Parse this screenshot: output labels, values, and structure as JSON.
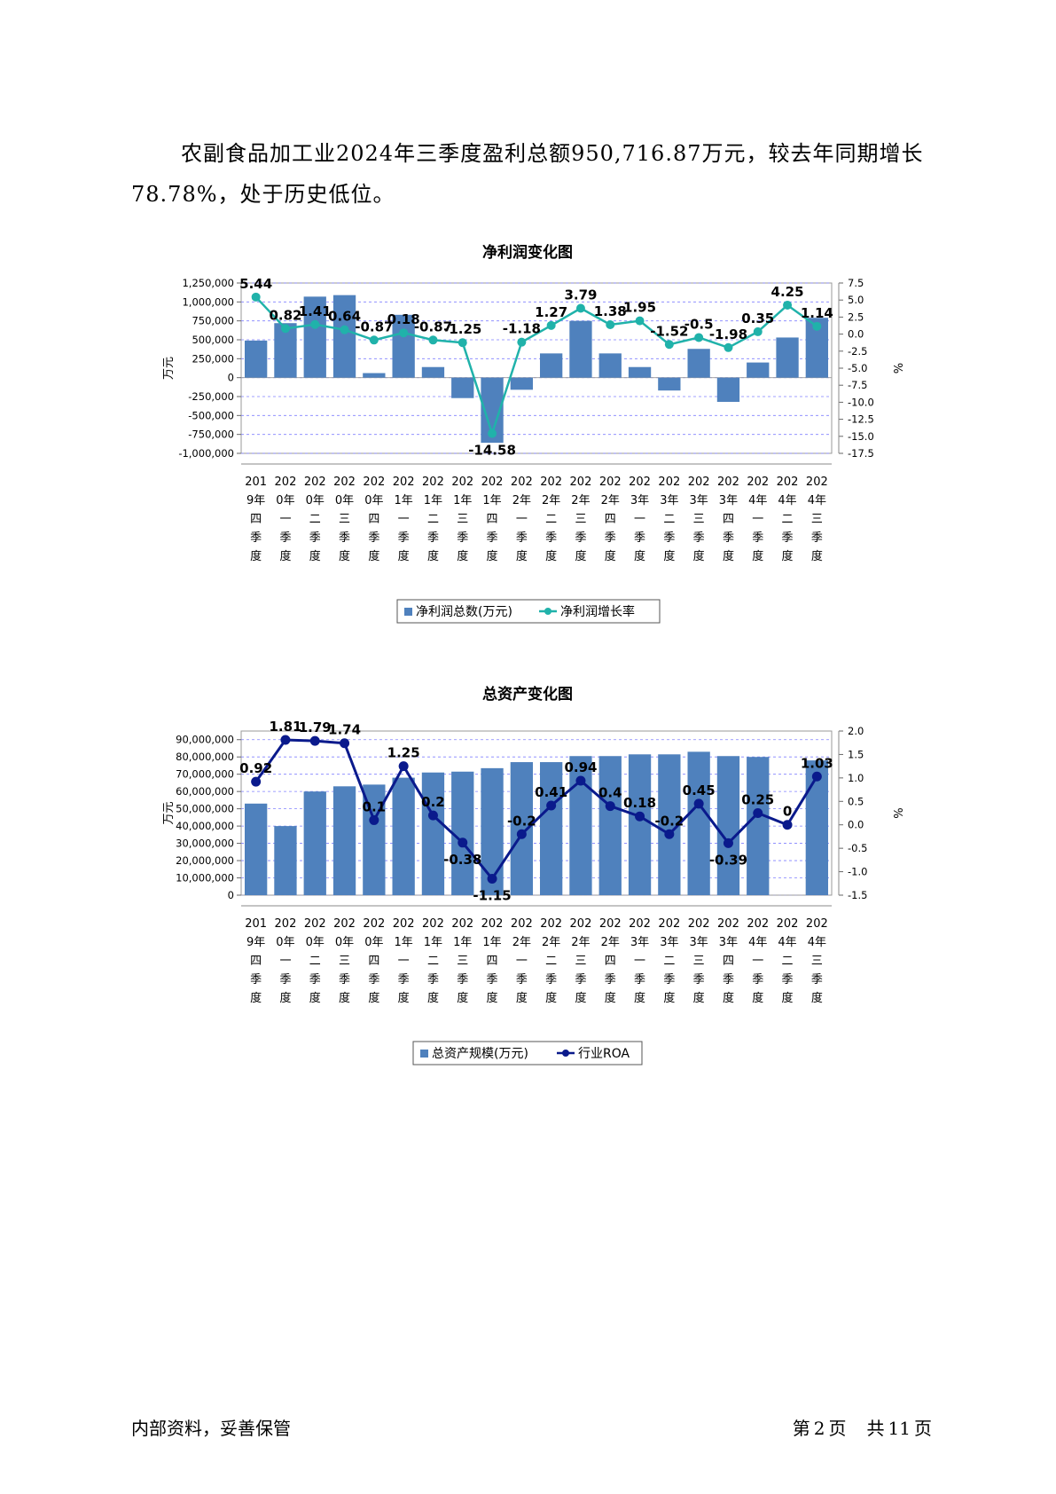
{
  "paragraph": "农副食品加工业2024年三季度盈利总额950,716.87万元，较去年同期增长78.78%，处于历史低位。",
  "footer": {
    "left": "内部资料，妥善保管",
    "page_prefix": "第",
    "page_num": "2",
    "page_unit": "页",
    "total_prefix": "共",
    "total_num": "11",
    "total_unit": "页"
  },
  "colors": {
    "bar": "#4f81bd",
    "line1": "#20b2aa",
    "line2": "#0a1a8c",
    "grid": "#8080ff"
  },
  "chart_data": [
    {
      "type": "bar",
      "title": "净利润变化图",
      "ylabel": "万元",
      "y2label": "%",
      "ylim": [
        -1000000,
        1250000
      ],
      "yticks": [
        "1,250,000",
        "1,000,000",
        "750,000",
        "500,000",
        "250,000",
        "0",
        "-250,000",
        "-500,000",
        "-750,000",
        "-1,000,000"
      ],
      "y2lim": [
        -17.5,
        7.5
      ],
      "y2ticks": [
        "7.5",
        "5.0",
        "2.5",
        "0.0",
        "-2.5",
        "-5.0",
        "-7.5",
        "-10.0",
        "-12.5",
        "-15.0",
        "-17.5"
      ],
      "categories": [
        "2019年四季度",
        "2020年一季度",
        "2020年二季度",
        "2020年三季度",
        "2020年四季度",
        "2021年一季度",
        "2021年二季度",
        "2021年三季度",
        "2021年四季度",
        "2022年一季度",
        "2022年二季度",
        "2022年三季度",
        "2022年四季度",
        "2023年一季度",
        "2023年二季度",
        "2023年三季度",
        "2023年四季度",
        "2024年一季度",
        "2024年二季度",
        "2024年三季度"
      ],
      "series": [
        {
          "name": "净利润总数(万元)",
          "kind": "bar",
          "values": [
            490000,
            720000,
            1070000,
            1090000,
            60000,
            830000,
            140000,
            -270000,
            -860000,
            -160000,
            320000,
            750000,
            320000,
            140000,
            -170000,
            380000,
            -320000,
            200000,
            530000,
            790000
          ]
        },
        {
          "name": "净利润增长率",
          "kind": "line",
          "values": [
            5.44,
            0.82,
            1.41,
            0.64,
            -0.87,
            0.18,
            -0.87,
            -1.25,
            -14.58,
            -1.18,
            1.27,
            3.79,
            1.38,
            1.95,
            -1.52,
            -0.5,
            -1.98,
            0.35,
            4.25,
            1.14
          ],
          "labels": [
            "5.44",
            "0.82",
            "1.41",
            "0.64",
            "-0.87",
            "0.18",
            "-0.87",
            "-1.25",
            "-14.58",
            "-1.18",
            "1.27",
            "3.79",
            "1.38",
            "1.95",
            "-1.52",
            "-0.5",
            "-1.98",
            "0.35",
            "4.25",
            "1.14"
          ]
        }
      ],
      "legend": "bottom",
      "grid": true
    },
    {
      "type": "bar",
      "title": "总资产变化图",
      "ylabel": "万元",
      "y2label": "%",
      "ylim": [
        0,
        95000000
      ],
      "yticks": [
        "90,000,000",
        "80,000,000",
        "70,000,000",
        "60,000,000",
        "50,000,000",
        "40,000,000",
        "30,000,000",
        "20,000,000",
        "10,000,000",
        "0"
      ],
      "y2lim": [
        -1.5,
        2.0
      ],
      "y2ticks": [
        "2.0",
        "1.5",
        "1.0",
        "0.5",
        "0.0",
        "-0.5",
        "-1.0",
        "-1.5"
      ],
      "categories": [
        "2019年四季度",
        "2020年一季度",
        "2020年二季度",
        "2020年三季度",
        "2020年四季度",
        "2021年一季度",
        "2021年二季度",
        "2021年三季度",
        "2021年四季度",
        "2022年一季度",
        "2022年二季度",
        "2022年三季度",
        "2022年四季度",
        "2023年一季度",
        "2023年二季度",
        "2023年三季度",
        "2023年四季度",
        "2024年一季度",
        "2024年二季度",
        "2024年三季度"
      ],
      "series": [
        {
          "name": "总资产规模(万元)",
          "kind": "bar",
          "values": [
            53000000,
            40000000,
            60000000,
            63000000,
            64000000,
            68000000,
            71000000,
            71500000,
            73500000,
            77000000,
            77000000,
            80500000,
            80500000,
            81500000,
            81500000,
            83000000,
            80500000,
            80000000,
            0,
            78000000
          ]
        },
        {
          "name": "行业ROA",
          "kind": "line",
          "values": [
            0.92,
            1.81,
            1.79,
            1.74,
            0.1,
            1.25,
            0.2,
            -0.38,
            -1.15,
            -0.2,
            0.41,
            0.94,
            0.4,
            0.18,
            -0.2,
            0.45,
            -0.39,
            0.25,
            0,
            1.03
          ],
          "labels": [
            "0.92",
            "1.81",
            "1.79",
            "1.74",
            "0.1",
            "1.25",
            "0.2",
            "-0.38",
            "-1.15",
            "-0.2",
            "0.41",
            "0.94",
            "0.4",
            "0.18",
            "-0.2",
            "0.45",
            "-0.39",
            "0.25",
            "0",
            "1.03"
          ]
        }
      ],
      "legend": "bottom",
      "grid": true
    }
  ]
}
